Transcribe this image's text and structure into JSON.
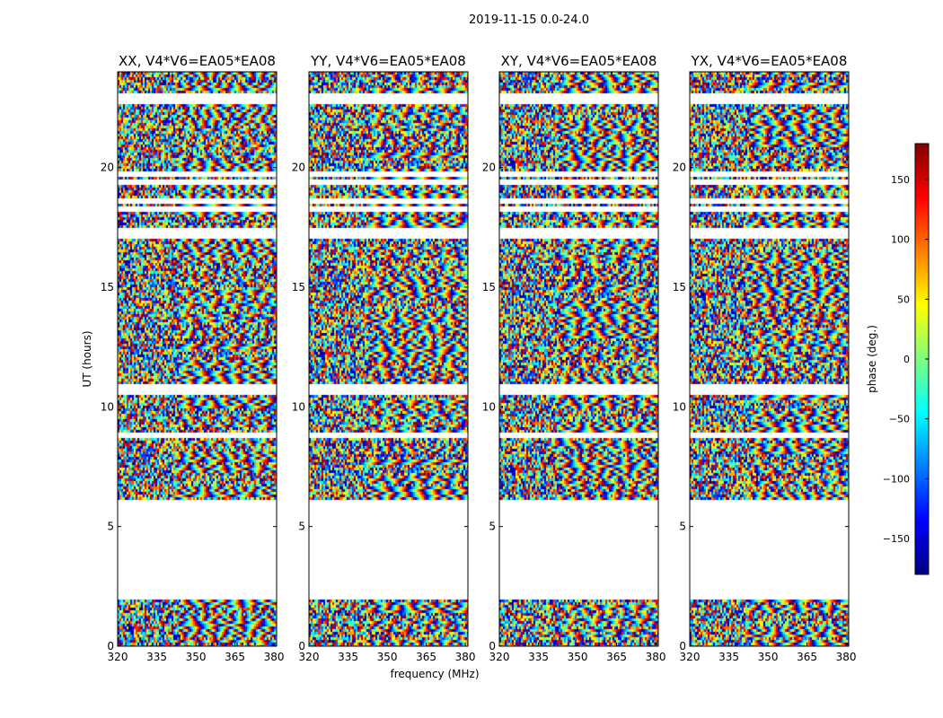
{
  "suptitle": "2019-11-15 0.0-24.0",
  "chart_data": {
    "type": "heatmap",
    "suptitle": "2019-11-15 0.0-24.0",
    "xlabel": "frequency (MHz)",
    "ylabel": "UT (hours)",
    "xlim": [
      320,
      381
    ],
    "ylim": [
      0,
      24
    ],
    "xticks": [
      320,
      335,
      350,
      365,
      380
    ],
    "yticks": [
      0,
      5,
      10,
      15,
      20
    ],
    "colormap": "jet",
    "panels": [
      {
        "title": "XX, V4*V6=EA05*EA08",
        "polarization": "XX"
      },
      {
        "title": "YY, V4*V6=EA05*EA08",
        "polarization": "YY"
      },
      {
        "title": "XY, V4*V6=EA05*EA08",
        "polarization": "XY"
      },
      {
        "title": "YX, V4*V6=EA05*EA08",
        "polarization": "YX"
      }
    ],
    "colorbar": {
      "label": "phase (deg.)",
      "range": [
        -180,
        180
      ],
      "ticks": [
        -150,
        -100,
        -50,
        0,
        50,
        100,
        150
      ],
      "colors": [
        "#00007f",
        "#0000ff",
        "#007fff",
        "#00ffff",
        "#7fff7f",
        "#ffff00",
        "#ff7f00",
        "#ff0000",
        "#7f0000"
      ]
    },
    "data_coverage": {
      "description_values_hours": {
        "segments": [
          [
            0.0,
            2.0
          ],
          [
            6.15,
            24.0
          ]
        ],
        "blank_gap": [
          2.0,
          6.15
        ],
        "flagged_white_rows": [
          4.5,
          8.85,
          10.7,
          10.9,
          17.2,
          17.4,
          18.3,
          18.65,
          19.45,
          19.75,
          22.8,
          23.05
        ]
      }
    },
    "grid": false
  }
}
